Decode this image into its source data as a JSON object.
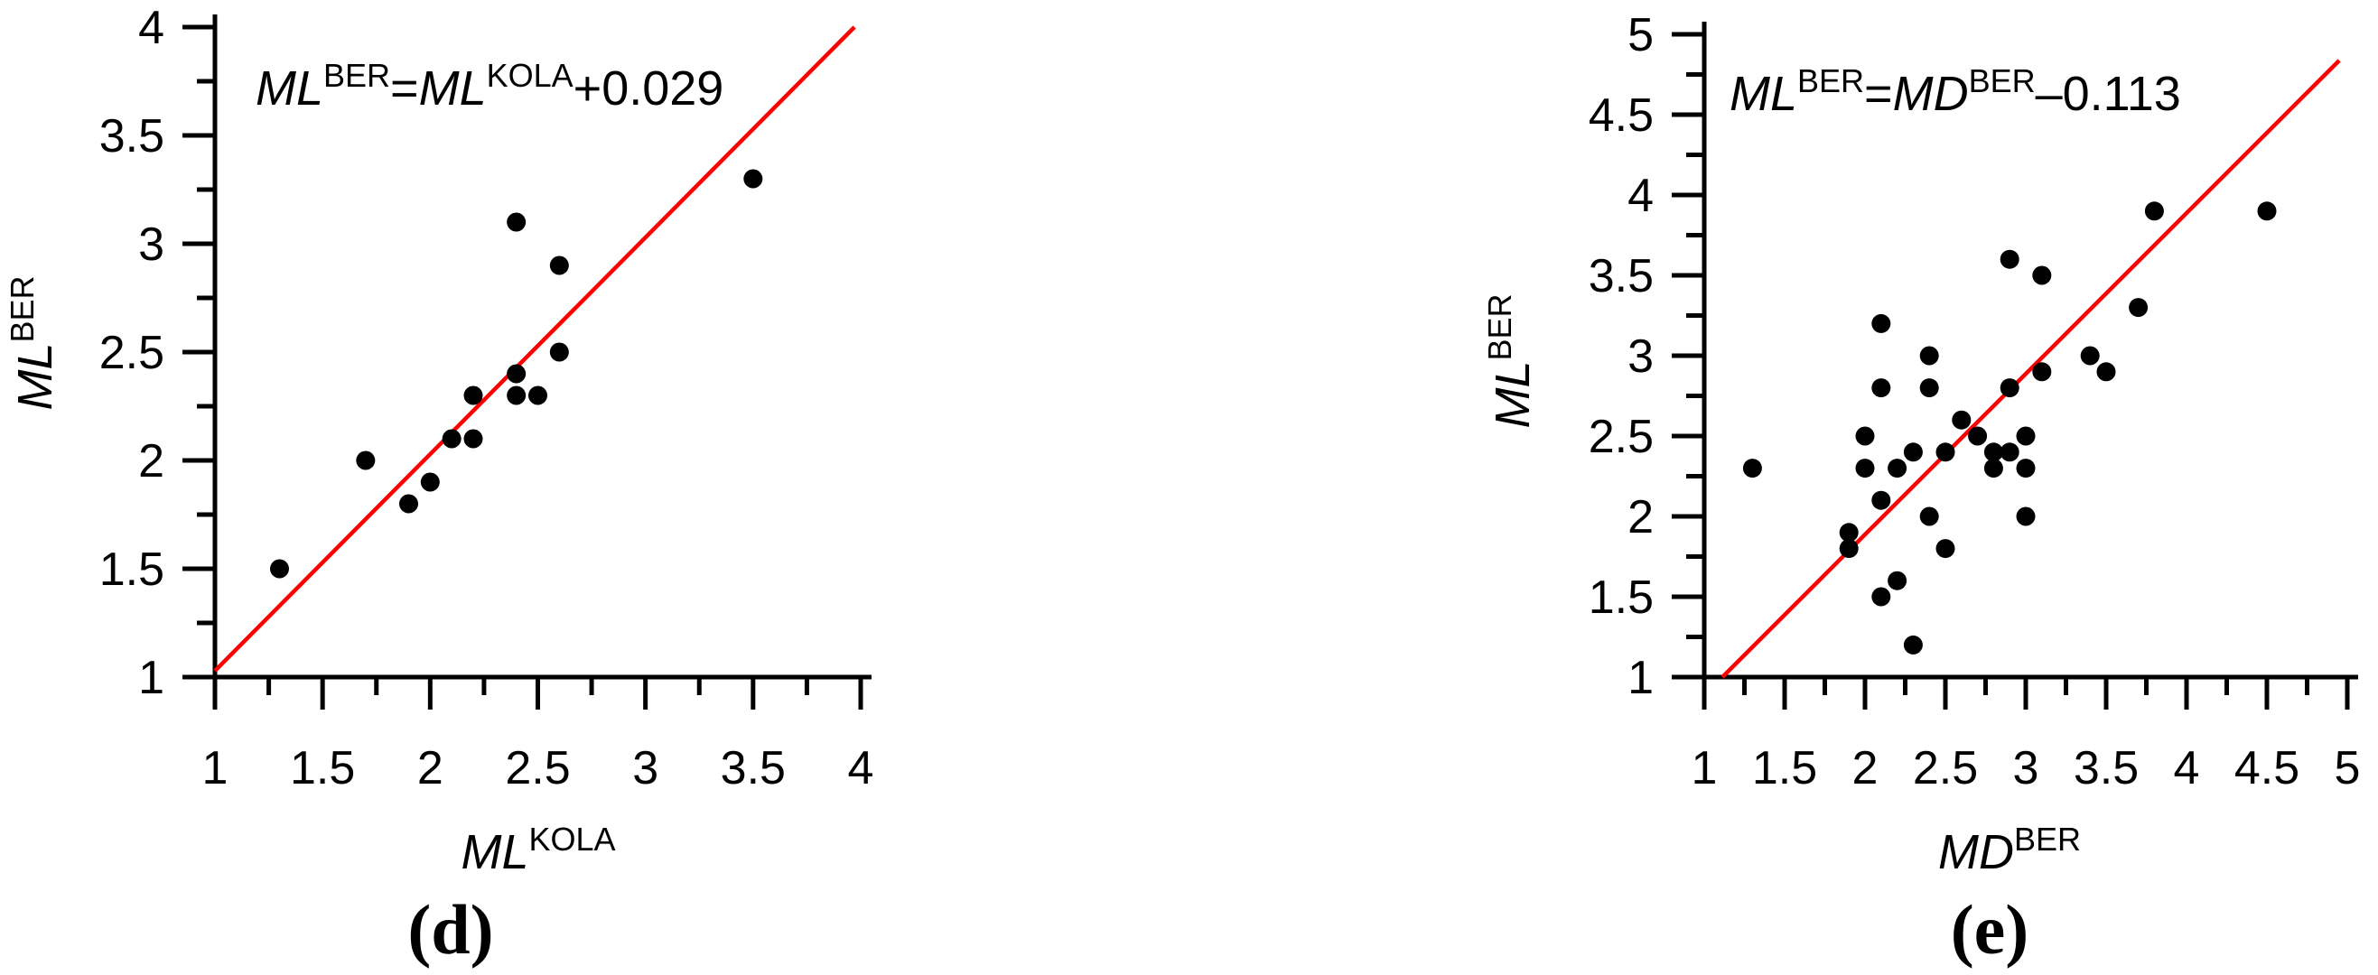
{
  "figure": {
    "background": "#ffffff",
    "colors": {
      "axis": "#000000",
      "points": "#000000",
      "fit_line": "#ff0000"
    }
  },
  "chart_data": [
    {
      "type": "scatter",
      "panel": "d",
      "caption": "(d)",
      "equation_text": "ML^BER=ML^KOLA+0.029",
      "equation_parts": [
        {
          "text": "ML",
          "style": "italic"
        },
        {
          "text": "BER",
          "style": "super"
        },
        {
          "text": "=",
          "style": "plain"
        },
        {
          "text": "ML",
          "style": "italic"
        },
        {
          "text": "KOLA",
          "style": "super"
        },
        {
          "text": "+0.029",
          "style": "plain"
        }
      ],
      "xlabel": "ML^KOLA",
      "xlabel_parts": [
        {
          "text": "ML",
          "style": "italic"
        },
        {
          "text": "KOLA",
          "style": "super"
        }
      ],
      "ylabel": "ML^BER",
      "ylabel_parts": [
        {
          "text": "ML",
          "style": "italic"
        },
        {
          "text": "BER",
          "style": "super"
        }
      ],
      "xlim": [
        1,
        4
      ],
      "ylim": [
        1,
        4
      ],
      "x_major_step": 0.5,
      "x_minor_step": 0.25,
      "y_major_step": 0.5,
      "y_minor_step": 0.25,
      "x_ticks": [
        "1",
        "1.5",
        "2",
        "2.5",
        "3",
        "3.5",
        "4"
      ],
      "y_ticks": [
        "1",
        "1.5",
        "2",
        "2.5",
        "3",
        "3.5",
        "4"
      ],
      "grid": false,
      "fit_line": {
        "slope": 1,
        "intercept": 0.029,
        "x_start": 1.0,
        "x_end": 3.971
      },
      "points": [
        [
          1.3,
          1.5
        ],
        [
          1.7,
          2.0
        ],
        [
          1.9,
          1.8
        ],
        [
          2.0,
          1.9
        ],
        [
          2.1,
          2.1
        ],
        [
          2.2,
          2.1
        ],
        [
          2.2,
          2.3
        ],
        [
          2.4,
          2.3
        ],
        [
          2.4,
          2.4
        ],
        [
          2.4,
          3.1
        ],
        [
          2.5,
          2.3
        ],
        [
          2.6,
          2.5
        ],
        [
          2.6,
          2.9
        ],
        [
          3.5,
          3.3
        ]
      ]
    },
    {
      "type": "scatter",
      "panel": "e",
      "caption": "(e)",
      "equation_text": "ML^BER=MD^BER–0.113",
      "equation_parts": [
        {
          "text": "ML",
          "style": "italic"
        },
        {
          "text": "BER",
          "style": "super"
        },
        {
          "text": "=",
          "style": "plain"
        },
        {
          "text": "MD",
          "style": "italic"
        },
        {
          "text": "BER",
          "style": "super"
        },
        {
          "text": "–0.113",
          "style": "plain"
        }
      ],
      "xlabel": "MD^BER",
      "xlabel_parts": [
        {
          "text": "MD",
          "style": "italic"
        },
        {
          "text": "BER",
          "style": "super"
        }
      ],
      "ylabel": "ML^BER",
      "ylabel_parts": [
        {
          "text": "ML",
          "style": "italic"
        },
        {
          "text": "BER",
          "style": "super"
        }
      ],
      "xlim": [
        1,
        5
      ],
      "ylim": [
        1,
        5
      ],
      "x_major_step": 0.5,
      "x_minor_step": 0.25,
      "y_major_step": 0.5,
      "y_minor_step": 0.25,
      "x_ticks": [
        "1",
        "1.5",
        "2",
        "2.5",
        "3",
        "3.5",
        "4",
        "4.5",
        "5"
      ],
      "y_ticks": [
        "1",
        "1.5",
        "2",
        "2.5",
        "3",
        "3.5",
        "4",
        "4.5",
        "5"
      ],
      "grid": false,
      "fit_line": {
        "slope": 1,
        "intercept": -0.113,
        "x_start": 1.113,
        "x_end": 4.95
      },
      "points": [
        [
          1.3,
          2.3
        ],
        [
          1.9,
          1.8
        ],
        [
          1.9,
          1.9
        ],
        [
          2.0,
          2.3
        ],
        [
          2.0,
          2.5
        ],
        [
          2.1,
          1.5
        ],
        [
          2.1,
          2.1
        ],
        [
          2.1,
          2.8
        ],
        [
          2.1,
          3.2
        ],
        [
          2.2,
          1.6
        ],
        [
          2.2,
          2.3
        ],
        [
          2.3,
          1.2
        ],
        [
          2.3,
          2.4
        ],
        [
          2.4,
          2.0
        ],
        [
          2.4,
          2.8
        ],
        [
          2.4,
          3.0
        ],
        [
          2.5,
          1.8
        ],
        [
          2.5,
          2.4
        ],
        [
          2.6,
          2.6
        ],
        [
          2.7,
          2.5
        ],
        [
          2.8,
          2.3
        ],
        [
          2.8,
          2.4
        ],
        [
          2.9,
          2.4
        ],
        [
          2.9,
          2.8
        ],
        [
          2.9,
          3.6
        ],
        [
          3.0,
          2.0
        ],
        [
          3.0,
          2.3
        ],
        [
          3.0,
          2.5
        ],
        [
          3.1,
          2.9
        ],
        [
          3.1,
          3.5
        ],
        [
          3.4,
          3.0
        ],
        [
          3.5,
          2.9
        ],
        [
          3.7,
          3.3
        ],
        [
          3.8,
          3.9
        ],
        [
          4.5,
          3.9
        ]
      ]
    }
  ]
}
